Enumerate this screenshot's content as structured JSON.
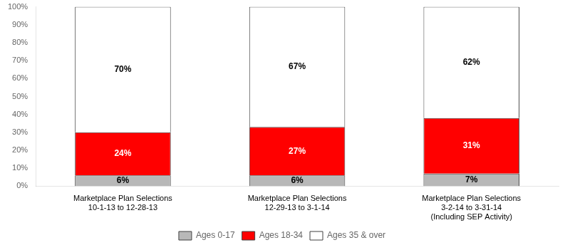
{
  "chart_data": {
    "type": "bar",
    "stacked": true,
    "categories": [
      [
        "Marketplace Plan Selections",
        "10-1-13 to 12-28-13"
      ],
      [
        "Marketplace Plan Selections",
        "12-29-13 to 3-1-14"
      ],
      [
        "Marketplace Plan Selections",
        "3-2-14 to 3-31-14",
        "(Including SEP Activity)"
      ]
    ],
    "series": [
      {
        "name": "Ages 0-17",
        "color": "#b8b8b8",
        "values": [
          6,
          6,
          7
        ],
        "value_labels": [
          "6%",
          "6%",
          "7%"
        ]
      },
      {
        "name": "Ages 18-34",
        "color": "#ff0000",
        "values": [
          24,
          27,
          31
        ],
        "value_labels": [
          "24%",
          "27%",
          "31%"
        ]
      },
      {
        "name": "Ages 35 & over",
        "color": "#ffffff",
        "values": [
          70,
          67,
          62
        ],
        "value_labels": [
          "70%",
          "67%",
          "62%"
        ]
      }
    ],
    "ylim": [
      0,
      100
    ],
    "yticks": [
      {
        "value": 0,
        "label": "0%"
      },
      {
        "value": 10,
        "label": "10%"
      },
      {
        "value": 20,
        "label": "20%"
      },
      {
        "value": 30,
        "label": "30%"
      },
      {
        "value": 40,
        "label": "40%"
      },
      {
        "value": 50,
        "label": "50%"
      },
      {
        "value": 60,
        "label": "60%"
      },
      {
        "value": 70,
        "label": "70%"
      },
      {
        "value": 80,
        "label": "80%"
      },
      {
        "value": 90,
        "label": "90%"
      },
      {
        "value": 100,
        "label": "100%"
      }
    ],
    "data_labels": true,
    "legend": "bottom",
    "grid": false
  }
}
